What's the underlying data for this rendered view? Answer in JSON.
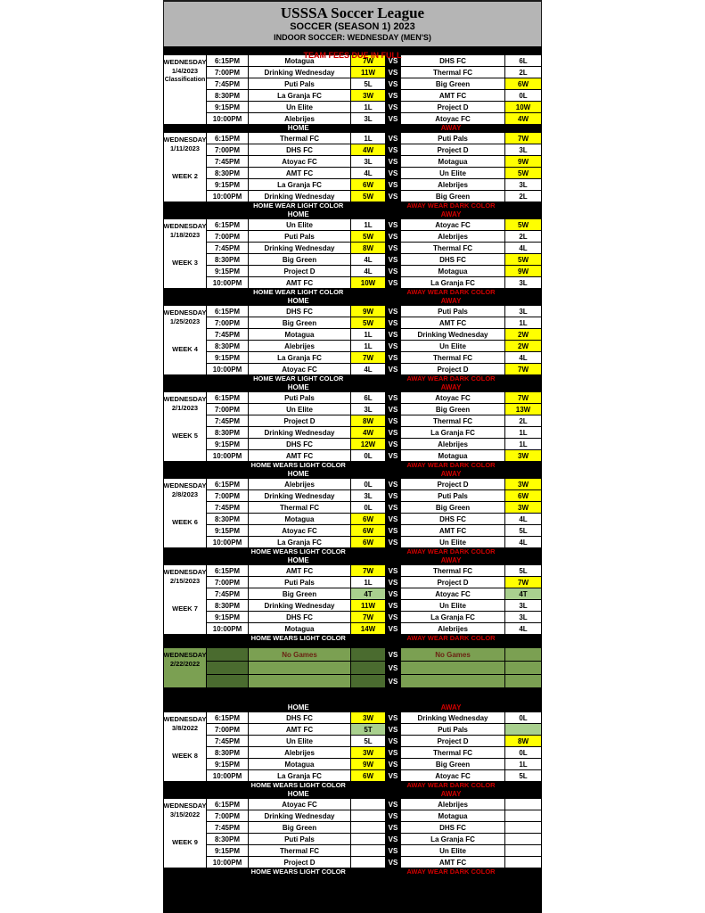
{
  "header": {
    "title": "USSSA Soccer League",
    "subtitle": "SOCCER (SEASON 1) 2023",
    "division": "INDOOR SOCCER:  WEDNESDAY (MEN'S)"
  },
  "fees_notice": "TEAM FEES DUE IN FULL",
  "labels": {
    "home": "HOME",
    "away": "AWAY",
    "vs": "VS",
    "away_wear": "AWAY WEAR DARK COLOR"
  },
  "colors": {
    "win_bg": "#ffff00",
    "tie_bg": "#a9d08e",
    "red_text": "#d10000",
    "header_bg": "#b5b5b5",
    "no_games_light": "#7ba052",
    "no_games_dark": "#4a6b2f"
  },
  "no_games": {
    "day": "WEDNESDAY",
    "date": "2/22/2022",
    "home_text": "No Games",
    "away_text": "No Games",
    "rows": 3
  },
  "weeks": [
    {
      "day": "WEDNESDAY",
      "date": "1/4/2023",
      "label": "Classification",
      "footer_wear": null,
      "games": [
        {
          "time": "6:15PM",
          "home": "Motagua",
          "home_result": "7W",
          "home_status": "win",
          "away": "DHS FC",
          "away_result": "6L",
          "away_status": "loss"
        },
        {
          "time": "7:00PM",
          "home": "Drinking Wednesday",
          "home_result": "11W",
          "home_status": "win",
          "away": "Thermal FC",
          "away_result": "2L",
          "away_status": "loss"
        },
        {
          "time": "7:45PM",
          "home": "Puti Pals",
          "home_result": "5L",
          "home_status": "loss",
          "away": "Big Green",
          "away_result": "6W",
          "away_status": "win"
        },
        {
          "time": "8:30PM",
          "home": "La Granja FC",
          "home_result": "3W",
          "home_status": "win",
          "away": "AMT FC",
          "away_result": "0L",
          "away_status": "loss"
        },
        {
          "time": "9:15PM",
          "home": "Un Elite",
          "home_result": "1L",
          "home_status": "loss",
          "away": "Project D",
          "away_result": "10W",
          "away_status": "win"
        },
        {
          "time": "10:00PM",
          "home": "Alebrijes",
          "home_result": "3L",
          "home_status": "loss",
          "away": "Atoyac FC",
          "away_result": "4W",
          "away_status": "win"
        }
      ]
    },
    {
      "day": "WEDNESDAY",
      "date": "1/11/2023",
      "label": "WEEK 2",
      "footer_wear": "HOME WEAR LIGHT COLOR",
      "games": [
        {
          "time": "6:15PM",
          "home": "Thermal FC",
          "home_result": "1L",
          "home_status": "loss",
          "away": "Puti Pals",
          "away_result": "7W",
          "away_status": "win"
        },
        {
          "time": "7:00PM",
          "home": "DHS FC",
          "home_result": "4W",
          "home_status": "win",
          "away": "Project D",
          "away_result": "3L",
          "away_status": "loss"
        },
        {
          "time": "7:45PM",
          "home": "Atoyac FC",
          "home_result": "3L",
          "home_status": "loss",
          "away": "Motagua",
          "away_result": "9W",
          "away_status": "win"
        },
        {
          "time": "8:30PM",
          "home": "AMT FC",
          "home_result": "4L",
          "home_status": "loss",
          "away": "Un Elite",
          "away_result": "5W",
          "away_status": "win"
        },
        {
          "time": "9:15PM",
          "home": "La Granja FC",
          "home_result": "6W",
          "home_status": "win",
          "away": "Alebrijes",
          "away_result": "3L",
          "away_status": "loss"
        },
        {
          "time": "10:00PM",
          "home": "Drinking Wednesday",
          "home_result": "5W",
          "home_status": "win",
          "away": "Big Green",
          "away_result": "2L",
          "away_status": "loss"
        }
      ]
    },
    {
      "day": "WEDNESDAY",
      "date": "1/18/2023",
      "label": "WEEK 3",
      "footer_wear": "HOME WEAR LIGHT COLOR",
      "games": [
        {
          "time": "6:15PM",
          "home": "Un Elite",
          "home_result": "1L",
          "home_status": "loss",
          "away": "Atoyac FC",
          "away_result": "5W",
          "away_status": "win"
        },
        {
          "time": "7:00PM",
          "home": "Puti Pals",
          "home_result": "5W",
          "home_status": "win",
          "away": "Alebrijes",
          "away_result": "2L",
          "away_status": "loss"
        },
        {
          "time": "7:45PM",
          "home": "Drinking Wednesday",
          "home_result": "8W",
          "home_status": "win",
          "away": "Thermal FC",
          "away_result": "4L",
          "away_status": "loss"
        },
        {
          "time": "8:30PM",
          "home": "Big Green",
          "home_result": "4L",
          "home_status": "loss",
          "away": "DHS FC",
          "away_result": "5W",
          "away_status": "win"
        },
        {
          "time": "9:15PM",
          "home": "Project D",
          "home_result": "4L",
          "home_status": "loss",
          "away": "Motagua",
          "away_result": "9W",
          "away_status": "win"
        },
        {
          "time": "10:00PM",
          "home": "AMT FC",
          "home_result": "10W",
          "home_status": "win",
          "away": "La Granja FC",
          "away_result": "3L",
          "away_status": "loss"
        }
      ]
    },
    {
      "day": "WEDNESDAY",
      "date": "1/25/2023",
      "label": "WEEK 4",
      "footer_wear": "HOME WEAR LIGHT COLOR",
      "games": [
        {
          "time": "6:15PM",
          "home": "DHS FC",
          "home_result": "9W",
          "home_status": "win",
          "away": "Puti Pals",
          "away_result": "3L",
          "away_status": "loss"
        },
        {
          "time": "7:00PM",
          "home": "Big Green",
          "home_result": "5W",
          "home_status": "win",
          "away": "AMT FC",
          "away_result": "1L",
          "away_status": "loss"
        },
        {
          "time": "7:45PM",
          "home": "Motagua",
          "home_result": "1L",
          "home_status": "loss",
          "away": "Drinking Wednesday",
          "away_result": "2W",
          "away_status": "win"
        },
        {
          "time": "8:30PM",
          "home": "Alebrijes",
          "home_result": "1L",
          "home_status": "loss",
          "away": "Un Elite",
          "away_result": "2W",
          "away_status": "win"
        },
        {
          "time": "9:15PM",
          "home": "La Granja FC",
          "home_result": "7W",
          "home_status": "win",
          "away": "Thermal FC",
          "away_result": "4L",
          "away_status": "loss"
        },
        {
          "time": "10:00PM",
          "home": "Atoyac FC",
          "home_result": "4L",
          "home_status": "loss",
          "away": "Project D",
          "away_result": "7W",
          "away_status": "win"
        }
      ]
    },
    {
      "day": "WEDNESDAY",
      "date": "2/1/2023",
      "label": "WEEK 5",
      "footer_wear": "HOME WEARS LIGHT COLOR",
      "games": [
        {
          "time": "6:15PM",
          "home": "Puti Pals",
          "home_result": "6L",
          "home_status": "loss",
          "away": "Atoyac FC",
          "away_result": "7W",
          "away_status": "win"
        },
        {
          "time": "7:00PM",
          "home": "Un Elite",
          "home_result": "3L",
          "home_status": "loss",
          "away": "Big Green",
          "away_result": "13W",
          "away_status": "win"
        },
        {
          "time": "7:45PM",
          "home": "Project D",
          "home_result": "8W",
          "home_status": "win",
          "away": "Thermal FC",
          "away_result": "2L",
          "away_status": "loss"
        },
        {
          "time": "8:30PM",
          "home": "Drinking Wednesday",
          "home_result": "4W",
          "home_status": "win",
          "away": "La Granja FC",
          "away_result": "1L",
          "away_status": "loss"
        },
        {
          "time": "9:15PM",
          "home": "DHS FC",
          "home_result": "12W",
          "home_status": "win",
          "away": "Alebrijes",
          "away_result": "1L",
          "away_status": "loss"
        },
        {
          "time": "10:00PM",
          "home": "AMT FC",
          "home_result": "0L",
          "home_status": "loss",
          "away": "Motagua",
          "away_result": "3W",
          "away_status": "win"
        }
      ]
    },
    {
      "day": "WEDNESDAY",
      "date": "2/8/2023",
      "label": "WEEK 6",
      "footer_wear": "HOME WEARS LIGHT COLOR",
      "games": [
        {
          "time": "6:15PM",
          "home": "Alebrijes",
          "home_result": "0L",
          "home_status": "loss",
          "away": "Project D",
          "away_result": "3W",
          "away_status": "win"
        },
        {
          "time": "7:00PM",
          "home": "Drinking Wednesday",
          "home_result": "3L",
          "home_status": "loss",
          "away": "Puti Pals",
          "away_result": "6W",
          "away_status": "win"
        },
        {
          "time": "7:45PM",
          "home": "Thermal FC",
          "home_result": "0L",
          "home_status": "loss",
          "away": "Big Green",
          "away_result": "3W",
          "away_status": "win"
        },
        {
          "time": "8:30PM",
          "home": "Motagua",
          "home_result": "6W",
          "home_status": "win",
          "away": "DHS FC",
          "away_result": "4L",
          "away_status": "loss"
        },
        {
          "time": "9:15PM",
          "home": "Atoyac FC",
          "home_result": "6W",
          "home_status": "win",
          "away": "AMT FC",
          "away_result": "5L",
          "away_status": "loss"
        },
        {
          "time": "10:00PM",
          "home": "La Granja FC",
          "home_result": "6W",
          "home_status": "win",
          "away": "Un Elite",
          "away_result": "4L",
          "away_status": "loss"
        }
      ]
    },
    {
      "day": "WEDNESDAY",
      "date": "2/15/2023",
      "label": "WEEK 7",
      "footer_wear": "HOME WEARS LIGHT COLOR",
      "games": [
        {
          "time": "6:15PM",
          "home": "AMT FC",
          "home_result": "7W",
          "home_status": "win",
          "away": "Thermal FC",
          "away_result": "5L",
          "away_status": "loss"
        },
        {
          "time": "7:00PM",
          "home": "Puti Pals",
          "home_result": "1L",
          "home_status": "loss",
          "away": "Project D",
          "away_result": "7W",
          "away_status": "win"
        },
        {
          "time": "7:45PM",
          "home": "Big Green",
          "home_result": "4T",
          "home_status": "tie",
          "away": "Atoyac FC",
          "away_result": "4T",
          "away_status": "tie"
        },
        {
          "time": "8:30PM",
          "home": "Drinking Wednesday",
          "home_result": "11W",
          "home_status": "win",
          "away": "Un Elite",
          "away_result": "3L",
          "away_status": "loss"
        },
        {
          "time": "9:15PM",
          "home": "DHS FC",
          "home_result": "7W",
          "home_status": "win",
          "away": "La Granja FC",
          "away_result": "3L",
          "away_status": "loss"
        },
        {
          "time": "10:00PM",
          "home": "Motagua",
          "home_result": "14W",
          "home_status": "win",
          "away": "Alebrijes",
          "away_result": "4L",
          "away_status": "loss"
        }
      ]
    },
    {
      "day": "WEDNESDAY",
      "date": "3/8/2022",
      "label": "WEEK 8",
      "footer_wear": "HOME WEARS LIGHT COLOR",
      "games": [
        {
          "time": "6:15PM",
          "home": "DHS FC",
          "home_result": "3W",
          "home_status": "win",
          "away": "Drinking Wednesday",
          "away_result": "0L",
          "away_status": "loss"
        },
        {
          "time": "7:00PM",
          "home": "AMT FC",
          "home_result": "5T",
          "home_status": "tie",
          "away": "Puti Pals",
          "away_result": "",
          "away_status": "tie"
        },
        {
          "time": "7:45PM",
          "home": "Un Elite",
          "home_result": "5L",
          "home_status": "loss",
          "away": "Project D",
          "away_result": "8W",
          "away_status": "win"
        },
        {
          "time": "8:30PM",
          "home": "Alebrijes",
          "home_result": "3W",
          "home_status": "win",
          "away": "Thermal FC",
          "away_result": "0L",
          "away_status": "loss"
        },
        {
          "time": "9:15PM",
          "home": "Motagua",
          "home_result": "9W",
          "home_status": "win",
          "away": "Big Green",
          "away_result": "1L",
          "away_status": "loss"
        },
        {
          "time": "10:00PM",
          "home": "La Granja FC",
          "home_result": "6W",
          "home_status": "win",
          "away": "Atoyac FC",
          "away_result": "5L",
          "away_status": "loss"
        }
      ]
    },
    {
      "day": "WEDNESDAY",
      "date": "3/15/2022",
      "label": "WEEK 9",
      "footer_wear": "HOME WEARS LIGHT COLOR",
      "games": [
        {
          "time": "6:15PM",
          "home": "Atoyac FC",
          "home_result": "",
          "home_status": "blank",
          "away": "Alebrijes",
          "away_result": "",
          "away_status": "blank"
        },
        {
          "time": "7:00PM",
          "home": "Drinking Wednesday",
          "home_result": "",
          "home_status": "blank",
          "away": "Motagua",
          "away_result": "",
          "away_status": "blank"
        },
        {
          "time": "7:45PM",
          "home": "Big Green",
          "home_result": "",
          "home_status": "blank",
          "away": "DHS FC",
          "away_result": "",
          "away_status": "blank"
        },
        {
          "time": "8:30PM",
          "home": "Puti Pals",
          "home_result": "",
          "home_status": "blank",
          "away": "La Granja FC",
          "away_result": "",
          "away_status": "blank"
        },
        {
          "time": "9:15PM",
          "home": "Thermal FC",
          "home_result": "",
          "home_status": "blank",
          "away": "Un Elite",
          "away_result": "",
          "away_status": "blank"
        },
        {
          "time": "10:00PM",
          "home": "Project D",
          "home_result": "",
          "home_status": "blank",
          "away": "AMT FC",
          "away_result": "",
          "away_status": "blank"
        }
      ]
    }
  ]
}
